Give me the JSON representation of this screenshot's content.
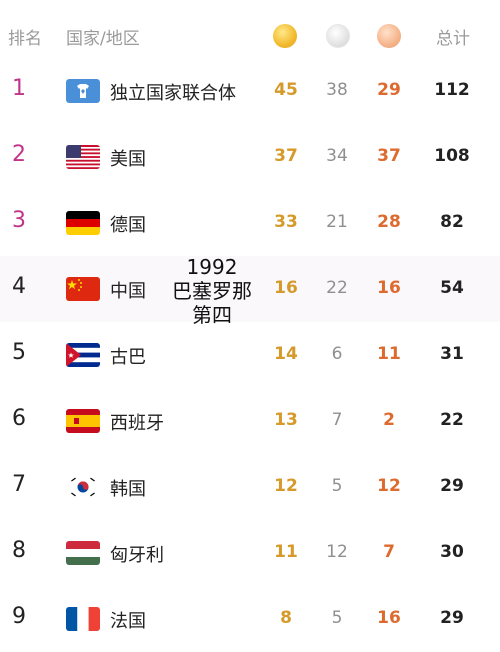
{
  "header": {
    "rank_label": "排名",
    "country_label": "国家/地区",
    "gold_icon": "gold-medal-icon",
    "silver_icon": "silver-medal-icon",
    "bronze_icon": "bronze-medal-icon",
    "total_label": "总计"
  },
  "overlay": {
    "line1": "1992",
    "line2": "巴塞罗那",
    "line3": "第四"
  },
  "colors": {
    "gold": "#d59a2a",
    "bronze": "#dd6a2e",
    "rank_pink": "#c2348a"
  },
  "rows": [
    {
      "rank": "1",
      "name": "独立国家联合体",
      "flag_icon": "unified-team-flag-icon",
      "gold": "45",
      "silver": "38",
      "bronze": "29",
      "total": "112"
    },
    {
      "rank": "2",
      "name": "美国",
      "flag_icon": "usa-flag-icon",
      "gold": "37",
      "silver": "34",
      "bronze": "37",
      "total": "108"
    },
    {
      "rank": "3",
      "name": "德国",
      "flag_icon": "germany-flag-icon",
      "gold": "33",
      "silver": "21",
      "bronze": "28",
      "total": "82"
    },
    {
      "rank": "4",
      "name": "中国",
      "flag_icon": "china-flag-icon",
      "gold": "16",
      "silver": "22",
      "bronze": "16",
      "total": "54"
    },
    {
      "rank": "5",
      "name": "古巴",
      "flag_icon": "cuba-flag-icon",
      "gold": "14",
      "silver": "6",
      "bronze": "11",
      "total": "31"
    },
    {
      "rank": "6",
      "name": "西班牙",
      "flag_icon": "spain-flag-icon",
      "gold": "13",
      "silver": "7",
      "bronze": "2",
      "total": "22"
    },
    {
      "rank": "7",
      "name": "韩国",
      "flag_icon": "south-korea-flag-icon",
      "gold": "12",
      "silver": "5",
      "bronze": "12",
      "total": "29"
    },
    {
      "rank": "8",
      "name": "匈牙利",
      "flag_icon": "hungary-flag-icon",
      "gold": "11",
      "silver": "12",
      "bronze": "7",
      "total": "30"
    },
    {
      "rank": "9",
      "name": "法国",
      "flag_icon": "france-flag-icon",
      "gold": "8",
      "silver": "5",
      "bronze": "16",
      "total": "29"
    }
  ]
}
